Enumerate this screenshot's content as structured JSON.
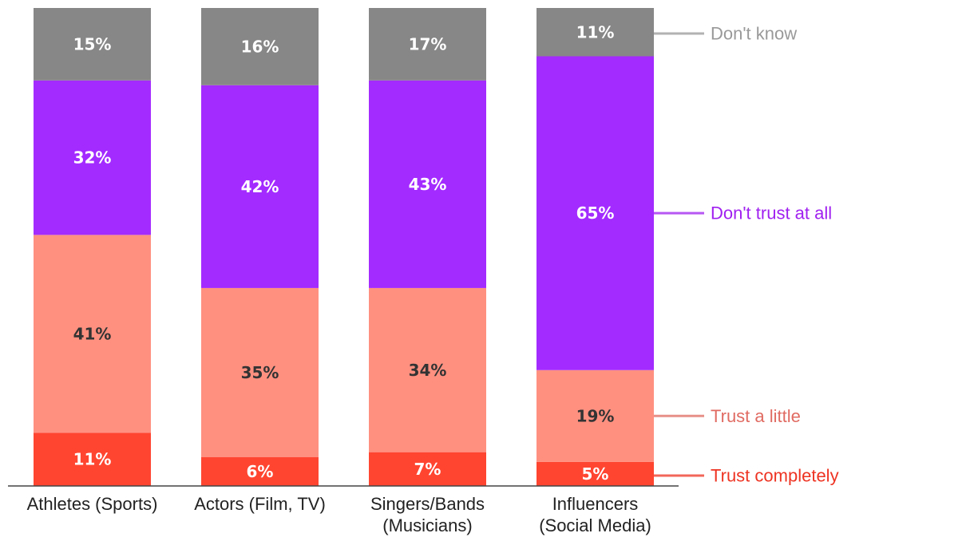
{
  "chart_data": {
    "type": "bar",
    "stacked": true,
    "categories": [
      [
        "Athletes (Sports)"
      ],
      [
        "Actors (Film, TV)"
      ],
      [
        "Singers/Bands",
        "(Musicians)"
      ],
      [
        "Influencers",
        "(Social Media)"
      ]
    ],
    "series": [
      {
        "name": "Trust completely",
        "color": "#ff4530",
        "legend_color": "#ee3322",
        "values": [
          11,
          6,
          7,
          5
        ]
      },
      {
        "name": "Trust a little",
        "color": "#ff9080",
        "legend_color": "#e06b62",
        "values": [
          41,
          35,
          34,
          19
        ]
      },
      {
        "name": "Don't trust at all",
        "color": "#a32bff",
        "legend_color": "#a020f0",
        "values": [
          32,
          42,
          43,
          65
        ]
      },
      {
        "name": "Don't know",
        "color": "#878787",
        "legend_color": "#999999",
        "values": [
          15,
          16,
          17,
          11
        ]
      }
    ],
    "value_suffix": "%",
    "label_colors": {
      "Trust completely": "#ffffff",
      "Trust a little": "#333333",
      "Don't trust at all": "#ffffff",
      "Don't know": "#ffffff"
    },
    "legend_position": "right",
    "title": "",
    "xlabel": "",
    "ylabel": ""
  }
}
